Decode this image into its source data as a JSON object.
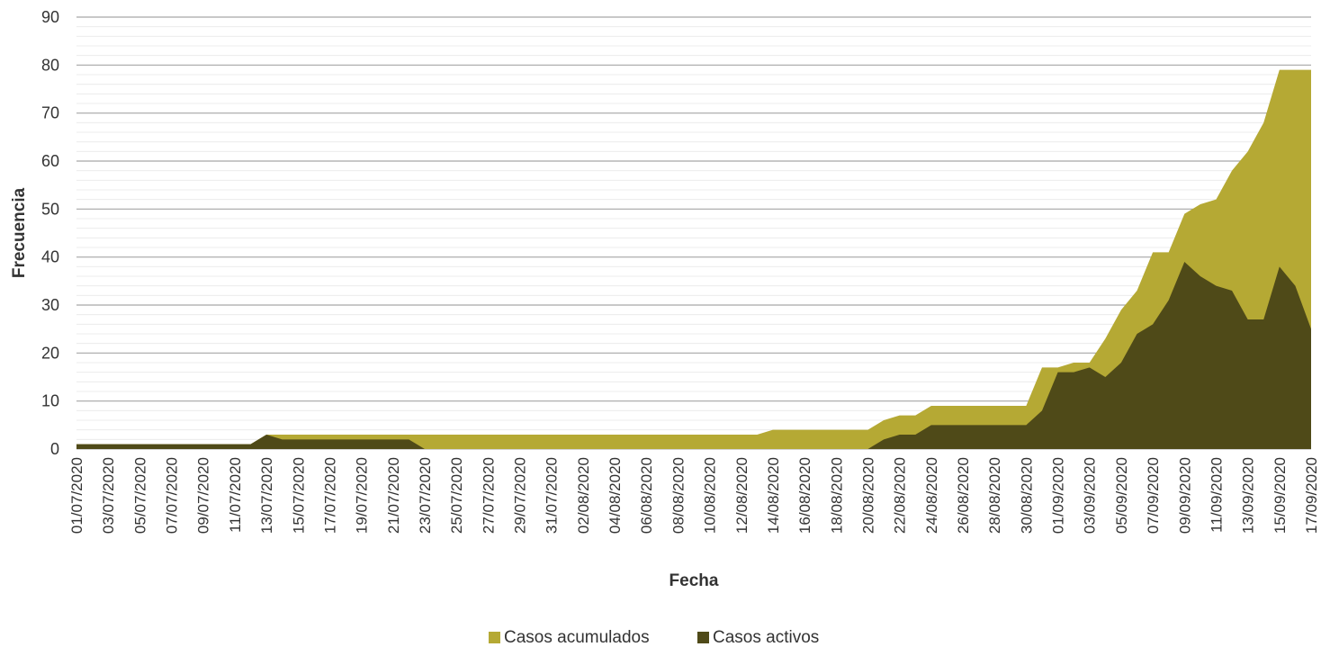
{
  "chart_data": {
    "type": "area",
    "xlabel": "Fecha",
    "ylabel": "Frecuencia",
    "ylim": [
      0,
      90
    ],
    "y_major_step": 10,
    "y_minor_step": 2,
    "grid": true,
    "legend_position": "bottom",
    "x": [
      "01/07/2020",
      "02/07/2020",
      "03/07/2020",
      "04/07/2020",
      "05/07/2020",
      "06/07/2020",
      "07/07/2020",
      "08/07/2020",
      "09/07/2020",
      "10/07/2020",
      "11/07/2020",
      "12/07/2020",
      "13/07/2020",
      "14/07/2020",
      "15/07/2020",
      "16/07/2020",
      "17/07/2020",
      "18/07/2020",
      "19/07/2020",
      "20/07/2020",
      "21/07/2020",
      "22/07/2020",
      "23/07/2020",
      "24/07/2020",
      "25/07/2020",
      "26/07/2020",
      "27/07/2020",
      "28/07/2020",
      "29/07/2020",
      "30/07/2020",
      "31/07/2020",
      "01/08/2020",
      "02/08/2020",
      "03/08/2020",
      "04/08/2020",
      "05/08/2020",
      "06/08/2020",
      "07/08/2020",
      "08/08/2020",
      "09/08/2020",
      "10/08/2020",
      "11/08/2020",
      "12/08/2020",
      "13/08/2020",
      "14/08/2020",
      "15/08/2020",
      "16/08/2020",
      "17/08/2020",
      "18/08/2020",
      "19/08/2020",
      "20/08/2020",
      "21/08/2020",
      "22/08/2020",
      "23/08/2020",
      "24/08/2020",
      "25/08/2020",
      "26/08/2020",
      "27/08/2020",
      "28/08/2020",
      "29/08/2020",
      "30/08/2020",
      "31/08/2020",
      "01/09/2020",
      "02/09/2020",
      "03/09/2020",
      "04/09/2020",
      "05/09/2020",
      "06/09/2020",
      "07/09/2020",
      "08/09/2020",
      "09/09/2020",
      "10/09/2020",
      "11/09/2020",
      "12/09/2020",
      "13/09/2020",
      "14/09/2020",
      "15/09/2020",
      "16/09/2020",
      "17/09/2020"
    ],
    "x_tick_labels": [
      "01/07/2020",
      "03/07/2020",
      "05/07/2020",
      "07/07/2020",
      "09/07/2020",
      "11/07/2020",
      "13/07/2020",
      "15/07/2020",
      "17/07/2020",
      "19/07/2020",
      "21/07/2020",
      "23/07/2020",
      "25/07/2020",
      "27/07/2020",
      "29/07/2020",
      "31/07/2020",
      "02/08/2020",
      "04/08/2020",
      "06/08/2020",
      "08/08/2020",
      "10/08/2020",
      "12/08/2020",
      "14/08/2020",
      "16/08/2020",
      "18/08/2020",
      "20/08/2020",
      "22/08/2020",
      "24/08/2020",
      "26/08/2020",
      "28/08/2020",
      "30/08/2020",
      "01/09/2020",
      "03/09/2020",
      "05/09/2020",
      "07/09/2020",
      "09/09/2020",
      "11/09/2020",
      "13/09/2020",
      "15/09/2020",
      "17/09/2020"
    ],
    "series": [
      {
        "name": "Casos acumulados",
        "color": "#b5a934",
        "values": [
          1,
          1,
          1,
          1,
          1,
          1,
          1,
          1,
          1,
          1,
          1,
          1,
          3,
          3,
          3,
          3,
          3,
          3,
          3,
          3,
          3,
          3,
          3,
          3,
          3,
          3,
          3,
          3,
          3,
          3,
          3,
          3,
          3,
          3,
          3,
          3,
          3,
          3,
          3,
          3,
          3,
          3,
          3,
          3,
          4,
          4,
          4,
          4,
          4,
          4,
          4,
          6,
          7,
          7,
          9,
          9,
          9,
          9,
          9,
          9,
          9,
          17,
          17,
          18,
          18,
          23,
          29,
          33,
          41,
          41,
          49,
          51,
          52,
          58,
          62,
          68,
          79,
          79,
          79
        ]
      },
      {
        "name": "Casos activos",
        "color": "#4f4a18",
        "values": [
          1,
          1,
          1,
          1,
          1,
          1,
          1,
          1,
          1,
          1,
          1,
          1,
          3,
          2,
          2,
          2,
          2,
          2,
          2,
          2,
          2,
          2,
          0,
          0,
          0,
          0,
          0,
          0,
          0,
          0,
          0,
          0,
          0,
          0,
          0,
          0,
          0,
          0,
          0,
          0,
          0,
          0,
          0,
          0,
          0,
          0,
          0,
          0,
          0,
          0,
          0,
          2,
          3,
          3,
          5,
          5,
          5,
          5,
          5,
          5,
          5,
          8,
          16,
          16,
          17,
          15,
          18,
          24,
          26,
          31,
          39,
          36,
          34,
          33,
          27,
          27,
          38,
          34,
          25
        ]
      }
    ]
  }
}
